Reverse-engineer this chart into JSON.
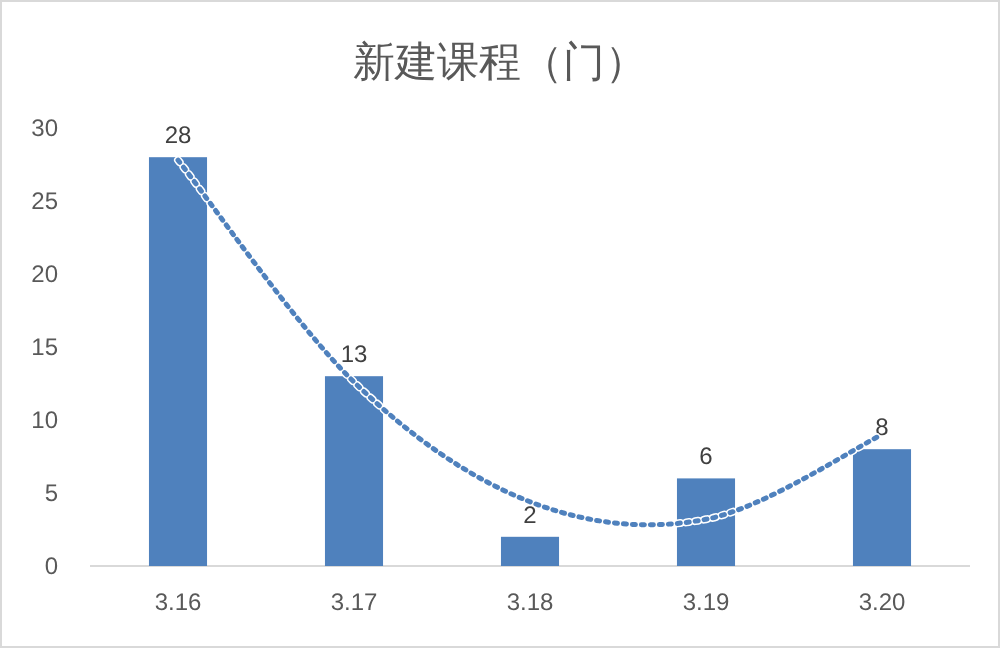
{
  "chart_data": {
    "type": "bar",
    "title": "新建课程（门）",
    "categories": [
      "3.16",
      "3.17",
      "3.18",
      "3.19",
      "3.20"
    ],
    "series": [
      {
        "color": "#4f81bd",
        "values": [
          28,
          13,
          2,
          6,
          8
        ],
        "value_labels": [
          "28",
          "13",
          "2",
          "6",
          "8"
        ]
      },
      {
        "type": "line",
        "color": "#4f81bd",
        "line_style": "dotted",
        "values": [
          27.8,
          12.6,
          4.4,
          3.2,
          9.0
        ]
      }
    ],
    "ylim": [
      0,
      30
    ],
    "yticks": [
      0,
      5,
      10,
      15,
      20,
      25,
      30
    ],
    "grid": false
  }
}
